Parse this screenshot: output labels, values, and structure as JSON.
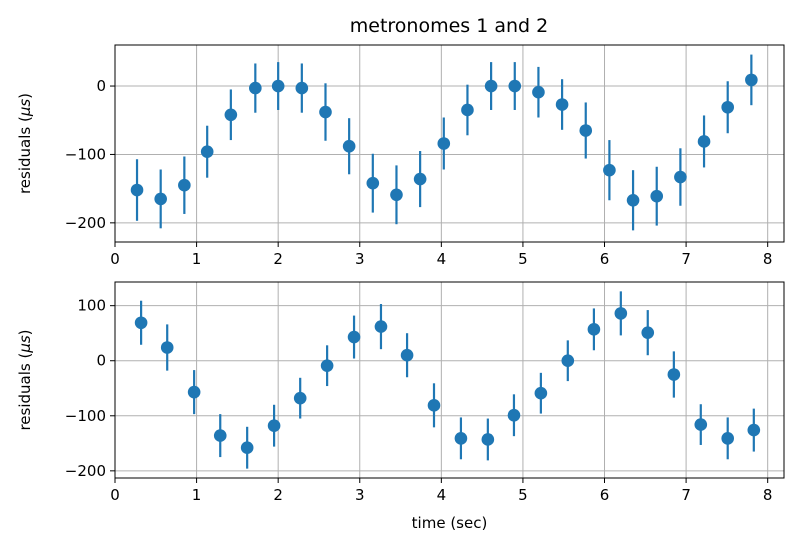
{
  "chart_data": {
    "type": "scatter",
    "style": "errorbar",
    "title": "metronomes 1 and 2",
    "marker_color": "#1f77b4",
    "grid": true,
    "panels": [
      {
        "ylabel_main": "residuals (",
        "ylabel_mu": "μs",
        "ylabel_end": ")",
        "xlabel": "",
        "xlim": [
          0,
          8.2
        ],
        "ylim": [
          -228,
          60
        ],
        "xticks": [
          0,
          1,
          2,
          3,
          4,
          5,
          6,
          7,
          8
        ],
        "yticks": [
          -200,
          -100,
          0
        ],
        "ytick_labels": [
          "−200",
          "−100",
          "0"
        ],
        "series": [
          {
            "x": [
              0.27,
              0.56,
              0.85,
              1.13,
              1.42,
              1.72,
              2.0,
              2.29,
              2.58,
              2.87,
              3.16,
              3.45,
              3.74,
              4.03,
              4.32,
              4.61,
              4.9,
              5.19,
              5.48,
              5.77,
              6.06,
              6.35,
              6.64,
              6.93,
              7.22,
              7.51,
              7.8
            ],
            "y": [
              -152,
              -165,
              -145,
              -96,
              -42,
              -3,
              0,
              -3,
              -38,
              -88,
              -142,
              -159,
              -136,
              -84,
              -35,
              0,
              0,
              -9,
              -27,
              -65,
              -123,
              -167,
              -161,
              -133,
              -81,
              -31,
              9
            ],
            "yerr": [
              45,
              43,
              42,
              38,
              37,
              36,
              35,
              36,
              42,
              41,
              43,
              43,
              41,
              38,
              37,
              35,
              35,
              37,
              37,
              41,
              44,
              44,
              43,
              42,
              38,
              38,
              37
            ]
          }
        ]
      },
      {
        "ylabel_main": "residuals (",
        "ylabel_mu": "μs",
        "ylabel_end": ")",
        "xlabel": "time (sec)",
        "xlim": [
          0,
          8.2
        ],
        "ylim": [
          -213,
          143
        ],
        "xticks": [
          0,
          1,
          2,
          3,
          4,
          5,
          6,
          7,
          8
        ],
        "yticks": [
          -200,
          -100,
          0,
          100
        ],
        "ytick_labels": [
          "−200",
          "−100",
          "0",
          "100"
        ],
        "series": [
          {
            "x": [
              0.32,
              0.64,
              0.97,
              1.29,
              1.62,
              1.95,
              2.27,
              2.6,
              2.93,
              3.26,
              3.58,
              3.91,
              4.24,
              4.57,
              4.89,
              5.22,
              5.55,
              5.87,
              6.2,
              6.53,
              6.85,
              7.18,
              7.51,
              7.83
            ],
            "y": [
              69,
              24,
              -57,
              -136,
              -158,
              -118,
              -68,
              -9,
              43,
              62,
              10,
              -81,
              -141,
              -143,
              -99,
              -59,
              0,
              57,
              86,
              51,
              -25,
              -116,
              -141,
              -126
            ],
            "yerr": [
              40,
              42,
              40,
              39,
              38,
              38,
              37,
              37,
              39,
              41,
              40,
              40,
              38,
              38,
              38,
              37,
              37,
              38,
              40,
              41,
              42,
              37,
              38,
              39
            ]
          }
        ]
      }
    ]
  }
}
